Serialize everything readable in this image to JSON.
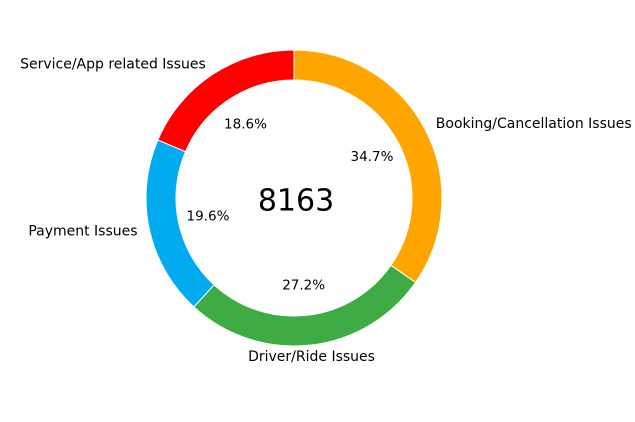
{
  "chart_data": {
    "type": "pie",
    "variant": "donut",
    "center_total": "8163",
    "start_angle_deg": 90,
    "direction": "clockwise",
    "categories": [
      "Booking/Cancellation Issues",
      "Driver/Ride Issues",
      "Payment Issues",
      "Service/App related Issues"
    ],
    "values": [
      34.7,
      27.2,
      19.6,
      18.6
    ],
    "value_labels": [
      "34.7%",
      "27.2%",
      "19.6%",
      "18.6%"
    ],
    "colors": [
      "#ffa500",
      "#3fab45",
      "#00aaee",
      "#ff0000"
    ],
    "legend": "none"
  }
}
